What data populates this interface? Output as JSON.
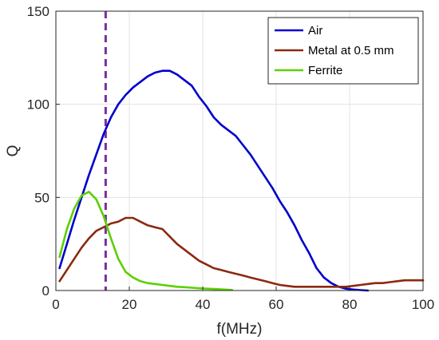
{
  "chart_data": {
    "type": "line",
    "title": "",
    "xlabel": "f(MHz)",
    "ylabel": "Q",
    "xlim": [
      0,
      100
    ],
    "ylim": [
      0,
      150
    ],
    "xticks": [
      0,
      20,
      40,
      60,
      80,
      100
    ],
    "yticks": [
      0,
      50,
      100,
      150
    ],
    "grid": true,
    "legend_position": "top-right",
    "vertical_line": {
      "x": 13.56,
      "style": "dashed",
      "color": "#7B2D9E"
    },
    "series": [
      {
        "name": "Air",
        "color": "#0000CC",
        "x": [
          1,
          3,
          5,
          7,
          9,
          11,
          13,
          15,
          17,
          19,
          21,
          23,
          25,
          27,
          29,
          31,
          33,
          35,
          37,
          39,
          41,
          43,
          45,
          47,
          49,
          51,
          53,
          55,
          57,
          59,
          61,
          63,
          65,
          67,
          69,
          71,
          73,
          75,
          77,
          79,
          81,
          83,
          85
        ],
        "y": [
          12,
          25,
          38,
          50,
          62,
          73,
          84,
          93,
          100,
          105,
          109,
          112,
          115,
          117,
          118,
          118,
          116,
          113,
          110,
          104,
          99,
          93,
          89,
          86,
          83,
          78,
          73,
          67,
          61,
          55,
          48,
          42,
          35,
          27,
          20,
          12,
          7,
          4,
          2,
          1,
          0.5,
          0.2,
          0
        ]
      },
      {
        "name": "Metal at 0.5 mm",
        "color": "#8B2A10",
        "x": [
          1,
          3,
          5,
          7,
          9,
          11,
          13,
          15,
          17,
          19,
          21,
          23,
          25,
          27,
          29,
          31,
          33,
          35,
          37,
          39,
          41,
          43,
          45,
          47,
          49,
          51,
          53,
          55,
          57,
          59,
          61,
          63,
          65,
          67,
          69,
          71,
          73,
          75,
          77,
          79,
          81,
          83,
          85,
          87,
          89,
          91,
          93,
          95,
          97,
          99,
          100
        ],
        "y": [
          5,
          11,
          17,
          23,
          28,
          32,
          34,
          36,
          37,
          39,
          39,
          37,
          35,
          34,
          33,
          29,
          25,
          22,
          19,
          16,
          14,
          12,
          11,
          10,
          9,
          8,
          7,
          6,
          5,
          4,
          3,
          2.5,
          2,
          2,
          2,
          2,
          2,
          2,
          2,
          2,
          2.5,
          3,
          3.5,
          4,
          4,
          4.5,
          5,
          5.5,
          5.5,
          5.5,
          5.5
        ]
      },
      {
        "name": "Ferrite",
        "color": "#5CD000",
        "x": [
          1,
          3,
          5,
          7,
          9,
          11,
          13,
          15,
          17,
          19,
          21,
          23,
          25,
          27,
          29,
          31,
          33,
          35,
          37,
          39,
          41,
          43,
          45,
          47,
          48
        ],
        "y": [
          18,
          33,
          44,
          51,
          53,
          49,
          40,
          28,
          17,
          10,
          7,
          5,
          4,
          3.5,
          3,
          2.5,
          2,
          1.8,
          1.5,
          1.2,
          1,
          0.8,
          0.6,
          0.4,
          0.3
        ]
      }
    ]
  }
}
